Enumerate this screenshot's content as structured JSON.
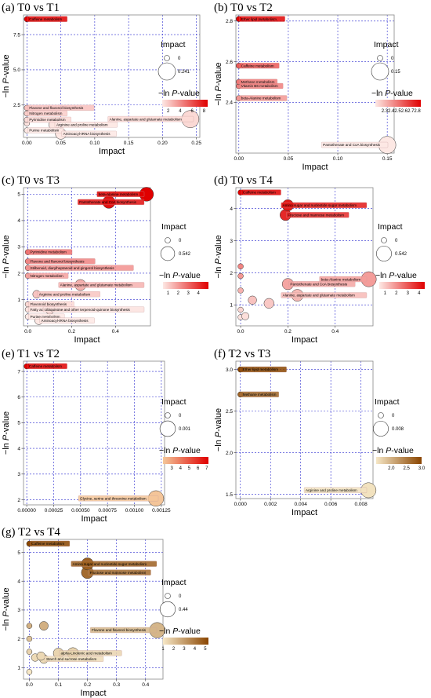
{
  "chart_data": [
    {
      "type": "scatter",
      "title": "(a) T0 vs T1",
      "xlabel": "Impact",
      "ylabel_prefix": "−ln ",
      "ylabel_italic": "P",
      "ylabel_suffix": "-value",
      "xlim": [
        -0.005,
        0.255
      ],
      "ylim": [
        0.2,
        8.9
      ],
      "xticks": [
        "0.00",
        "0.05",
        "0.10",
        "0.15",
        "0.20",
        "0.25"
      ],
      "xtick_values": [
        0,
        0.05,
        0.1,
        0.15,
        0.2,
        0.25
      ],
      "yticks": [
        "2.5",
        "5.0",
        "7.5"
      ],
      "ytick_values": [
        2.5,
        5.0,
        7.5
      ],
      "size_legend": {
        "title": "Impact",
        "labels": [
          "0",
          "0.241"
        ],
        "max": 0.241
      },
      "color_legend": {
        "title_prefix": "−ln ",
        "title_italic": "P",
        "title_suffix": "-value",
        "ticks": [
          "2",
          "4",
          "6",
          "8"
        ],
        "tick_values": [
          2,
          4,
          6,
          8
        ],
        "min": 1.0,
        "max": 8.6,
        "low_color": "#fde8e4",
        "high_color": "#e00000"
      },
      "points": [
        {
          "label": "Caffeine metabolism",
          "x": 0.0,
          "y": 8.6
        },
        {
          "label": "Flavone and flavonol biosynthesis",
          "x": 0.0,
          "y": 2.3
        },
        {
          "label": "Nitrogen metabolism",
          "x": 0.0,
          "y": 1.9
        },
        {
          "label": "Pyrimidine metabolism",
          "x": 0.0,
          "y": 1.45
        },
        {
          "label": "Alanine, aspartate and glutamate metabolism",
          "x": 0.241,
          "y": 1.5
        },
        {
          "label": "Arginine and proline metabolism",
          "x": 0.04,
          "y": 1.1
        },
        {
          "label": "Purine metabolism",
          "x": 0.0,
          "y": 0.7
        },
        {
          "label": "Aminoacyl-tRNA biosynthesis",
          "x": 0.05,
          "y": 0.45
        },
        {
          "label": "",
          "x": 0.0,
          "y": 1.2
        }
      ]
    },
    {
      "type": "scatter",
      "title": "(b) T0 vs T2",
      "xlabel": "Impact",
      "ylabel_prefix": "−ln ",
      "ylabel_italic": "P",
      "ylabel_suffix": "-value",
      "xlim": [
        -0.003,
        0.157
      ],
      "ylim": [
        2.15,
        2.83
      ],
      "xticks": [
        "0.00",
        "0.05",
        "0.10",
        "0.15"
      ],
      "xtick_values": [
        0,
        0.05,
        0.1,
        0.15
      ],
      "yticks": [
        "2.4",
        "2.6",
        "2.8"
      ],
      "ytick_values": [
        2.4,
        2.6,
        2.8
      ],
      "size_legend": {
        "title": "Impact",
        "labels": [
          "0",
          "0.15"
        ],
        "max": 0.15
      },
      "color_legend": {
        "title_prefix": "−ln ",
        "title_italic": "P",
        "title_suffix": "-value",
        "ticks": [
          "2.32.42.52.62.72.8"
        ],
        "tick_values": [
          2.55
        ],
        "min": 2.2,
        "max": 2.82,
        "low_color": "#fde8e4",
        "high_color": "#e00000"
      },
      "points": [
        {
          "label": "Ether lipid metabolism",
          "x": 0.0,
          "y": 2.81
        },
        {
          "label": "Caffeine metabolism",
          "x": 0.0,
          "y": 2.58
        },
        {
          "label": "Methane metabolism",
          "x": 0.0,
          "y": 2.5
        },
        {
          "label": "Vitamin B6 metabolism",
          "x": 0.0,
          "y": 2.48
        },
        {
          "label": "beta-Alanine metabolism",
          "x": 0.0,
          "y": 2.42
        },
        {
          "label": "Pantothenate and CoA biosynthesis",
          "x": 0.15,
          "y": 2.19
        }
      ]
    },
    {
      "type": "scatter",
      "title": "(c) T0 vs T3",
      "xlabel": "Impact",
      "ylabel_prefix": "−ln ",
      "ylabel_italic": "P",
      "ylabel_suffix": "-value",
      "xlim": [
        -0.02,
        0.56
      ],
      "ylim": [
        0.0,
        5.25
      ],
      "xticks": [
        "0.0",
        "0.2",
        "0.4"
      ],
      "xtick_values": [
        0,
        0.2,
        0.4
      ],
      "yticks": [
        "1",
        "2",
        "3",
        "4",
        "5"
      ],
      "ytick_values": [
        1,
        2,
        3,
        4,
        5
      ],
      "size_legend": {
        "title": "Impact",
        "labels": [
          "0",
          "0.542"
        ],
        "max": 0.542
      },
      "color_legend": {
        "title_prefix": "−ln ",
        "title_italic": "P",
        "title_suffix": "-value",
        "ticks": [
          "1",
          "2",
          "3",
          "4"
        ],
        "tick_values": [
          1,
          2,
          3,
          4
        ],
        "min": 0.5,
        "max": 5.0,
        "low_color": "#fde8e4",
        "high_color": "#e00000"
      },
      "points": [
        {
          "label": "beta-Alanine metabolism",
          "x": 0.542,
          "y": 5.0
        },
        {
          "label": "Pantothenate and CoA biosynthesis",
          "x": 0.37,
          "y": 4.7
        },
        {
          "label": "Pyrimidine metabolism",
          "x": 0.0,
          "y": 2.8
        },
        {
          "label": "Flavone and flavonol biosynthesis",
          "x": 0.0,
          "y": 2.45
        },
        {
          "label": "Stilbenoid, diarylheptanoid and gingerol biosynthesis",
          "x": 0.0,
          "y": 2.2
        },
        {
          "label": "Nitrogen metabolism",
          "x": 0.0,
          "y": 1.9
        },
        {
          "label": "Alanine, aspartate and glutamate metabolism",
          "x": 0.24,
          "y": 1.55
        },
        {
          "label": "Arginine and proline metabolism",
          "x": 0.04,
          "y": 1.2
        },
        {
          "label": "Flavonoid biosynthesis",
          "x": 0.0,
          "y": 0.82
        },
        {
          "label": "Fatty acid biosynthesis",
          "x": 0.0,
          "y": 0.62
        },
        {
          "label": "Ubiquinone and other terpenoid-quinone biosynthesis",
          "x": 0.1,
          "y": 0.62
        },
        {
          "label": "Purine metabolism",
          "x": 0.0,
          "y": 0.35
        },
        {
          "label": "Aminoacyl-tRNA biosynthesis",
          "x": 0.05,
          "y": 0.2
        }
      ]
    },
    {
      "type": "scatter",
      "title": "(d) T0 vs T4",
      "xlabel": "Impact",
      "ylabel_prefix": "−ln ",
      "ylabel_italic": "P",
      "ylabel_suffix": "-value",
      "xlim": [
        -0.02,
        0.56
      ],
      "ylim": [
        0.35,
        4.65
      ],
      "xticks": [
        "0.0",
        "0.2",
        "0.4"
      ],
      "xtick_values": [
        0,
        0.2,
        0.4
      ],
      "yticks": [
        "1",
        "2",
        "3",
        "4"
      ],
      "ytick_values": [
        1,
        2,
        3,
        4
      ],
      "size_legend": {
        "title": "Impact",
        "labels": [
          "0",
          "0.542"
        ],
        "max": 0.542
      },
      "color_legend": {
        "title_prefix": "−ln ",
        "title_italic": "P",
        "title_suffix": "-value",
        "ticks": [
          "1",
          "2",
          "3",
          "4"
        ],
        "tick_values": [
          1,
          2,
          3,
          4
        ],
        "min": 0.5,
        "max": 4.5,
        "low_color": "#fde8e4",
        "high_color": "#e00000"
      },
      "points": [
        {
          "label": "Caffeine metabolism",
          "x": 0.0,
          "y": 4.5
        },
        {
          "label": "Amino sugar and nucleotide sugar metabolism",
          "x": 0.2,
          "y": 4.1
        },
        {
          "label": "Fructose and mannose metabolism",
          "x": 0.19,
          "y": 3.8
        },
        {
          "label": "beta-Alanine metabolism",
          "x": 0.542,
          "y": 1.8
        },
        {
          "label": "Pantothenate and CoA biosynthesis",
          "x": 0.2,
          "y": 1.65
        },
        {
          "label": "Alanine, aspartate and glutamate metabolism",
          "x": 0.24,
          "y": 1.3
        },
        {
          "label": "",
          "x": 0.0,
          "y": 2.2
        },
        {
          "label": "",
          "x": 0.0,
          "y": 1.9
        },
        {
          "label": "",
          "x": 0.0,
          "y": 1.45
        },
        {
          "label": "",
          "x": 0.05,
          "y": 1.15
        },
        {
          "label": "",
          "x": 0.12,
          "y": 1.05
        },
        {
          "label": "",
          "x": 0.0,
          "y": 0.85
        },
        {
          "label": "",
          "x": 0.0,
          "y": 0.62
        },
        {
          "label": "",
          "x": 0.02,
          "y": 0.65
        }
      ]
    },
    {
      "type": "scatter",
      "title": "(e) T1 vs T2",
      "xlabel": "Impact",
      "ylabel_prefix": "−ln ",
      "ylabel_italic": "P",
      "ylabel_suffix": "-value",
      "xlim": [
        -3e-05,
        0.00128
      ],
      "ylim": [
        1.8,
        7.4
      ],
      "xticks": [
        "0.00000",
        "0.00025",
        "0.00050",
        "0.00075",
        "0.00100",
        "0.00125"
      ],
      "xtick_values": [
        0,
        0.00025,
        0.0005,
        0.00075,
        0.001,
        0.00125
      ],
      "yticks": [
        "2",
        "3",
        "4",
        "5",
        "6",
        "7"
      ],
      "ytick_values": [
        2,
        3,
        4,
        5,
        6,
        7
      ],
      "size_legend": {
        "title": "Impact",
        "labels": [
          "0",
          "0.001"
        ],
        "max": 0.0012
      },
      "color_legend": {
        "title_prefix": "−ln ",
        "title_italic": "P",
        "title_suffix": "-value",
        "ticks": [
          "3",
          "4",
          "5",
          "6",
          "7"
        ],
        "tick_values": [
          3,
          4,
          5,
          6,
          7
        ],
        "min": 2.0,
        "max": 7.2,
        "low_color": "#f4c79a",
        "high_color": "#e00000"
      },
      "points": [
        {
          "label": "Caffeine metabolism",
          "x": 0.0,
          "y": 7.2
        },
        {
          "label": "Glycine, serine and threonine metabolism",
          "x": 0.0012,
          "y": 2.05
        }
      ]
    },
    {
      "type": "scatter",
      "title": "(f) T2 vs T3",
      "xlabel": "Impact",
      "ylabel_prefix": "−ln ",
      "ylabel_italic": "P",
      "ylabel_suffix": "-value",
      "xlim": [
        -0.0003,
        0.0088
      ],
      "ylim": [
        1.45,
        3.1
      ],
      "xticks": [
        "0.000",
        "0.002",
        "0.004",
        "0.006",
        "0.008"
      ],
      "xtick_values": [
        0,
        0.002,
        0.004,
        0.006,
        0.008
      ],
      "yticks": [
        "1.5",
        "2.0",
        "2.5",
        "3.0"
      ],
      "ytick_values": [
        1.5,
        2.0,
        2.5,
        3.0
      ],
      "size_legend": {
        "title": "Impact",
        "labels": [
          "0",
          "0.008"
        ],
        "max": 0.0085
      },
      "color_legend": {
        "title_prefix": "−ln ",
        "title_italic": "P",
        "title_suffix": "-value",
        "ticks": [
          "2.0",
          "2.5",
          "3.0"
        ],
        "tick_values": [
          2.0,
          2.5,
          3.0
        ],
        "min": 1.5,
        "max": 3.0,
        "low_color": "#f6e7c6",
        "high_color": "#8a4500"
      },
      "points": [
        {
          "label": "Ether lipid metabolism",
          "x": 0.0,
          "y": 3.0
        },
        {
          "label": "Methane metabolism",
          "x": 0.0,
          "y": 2.7
        },
        {
          "label": "Arginine and proline metabolism",
          "x": 0.0085,
          "y": 1.55
        }
      ]
    },
    {
      "type": "scatter",
      "title": "(g) T2 vs T4",
      "xlabel": "Impact",
      "ylabel_prefix": "−ln ",
      "ylabel_italic": "P",
      "ylabel_suffix": "-value",
      "xlim": [
        -0.02,
        0.46
      ],
      "ylim": [
        0.6,
        5.45
      ],
      "xticks": [
        "0.0",
        "0.1",
        "0.2",
        "0.3",
        "0.4"
      ],
      "xtick_values": [
        0,
        0.1,
        0.2,
        0.3,
        0.4
      ],
      "yticks": [
        "1",
        "2",
        "3",
        "4",
        "5"
      ],
      "ytick_values": [
        1,
        2,
        3,
        4,
        5
      ],
      "size_legend": {
        "title": "Impact",
        "labels": [
          "0",
          "0.44"
        ],
        "max": 0.44
      },
      "color_legend": {
        "title_prefix": "−ln ",
        "title_italic": "P",
        "title_suffix": "-value",
        "ticks": [
          "1",
          "2",
          "3",
          "4",
          "5"
        ],
        "tick_values": [
          1,
          2,
          3,
          4,
          5
        ],
        "min": 1.0,
        "max": 5.3,
        "low_color": "#f6e7c6",
        "high_color": "#8a4500"
      },
      "points": [
        {
          "label": "Caffeine metabolism",
          "x": 0.0,
          "y": 5.3
        },
        {
          "label": "Amino sugar and nucleotide sugar metabolism",
          "x": 0.2,
          "y": 4.6
        },
        {
          "label": "Fructose and mannose metabolism",
          "x": 0.2,
          "y": 4.3
        },
        {
          "label": "Flavone and flavonol biosynthesis",
          "x": 0.44,
          "y": 2.3
        },
        {
          "label": "alpha-Linolenic acid metabolism",
          "x": 0.1,
          "y": 1.5
        },
        {
          "label": "Starch and sucrose metabolism",
          "x": 0.05,
          "y": 1.3
        },
        {
          "label": "",
          "x": 0.0,
          "y": 2.45
        },
        {
          "label": "",
          "x": 0.05,
          "y": 2.45
        },
        {
          "label": "",
          "x": 0.0,
          "y": 2.0
        },
        {
          "label": "",
          "x": 0.0,
          "y": 1.55
        },
        {
          "label": "",
          "x": 0.02,
          "y": 1.35
        },
        {
          "label": "",
          "x": 0.04,
          "y": 1.4
        },
        {
          "label": "",
          "x": 0.15,
          "y": 1.5
        },
        {
          "label": "",
          "x": 0.0,
          "y": 0.85
        }
      ]
    }
  ]
}
